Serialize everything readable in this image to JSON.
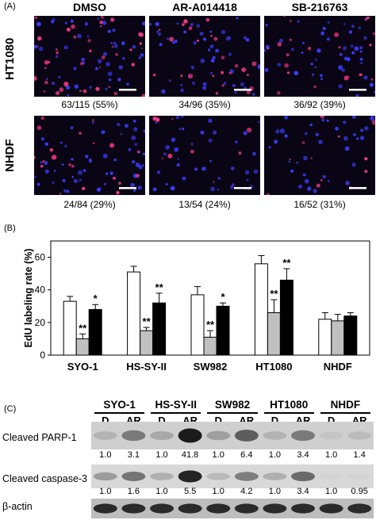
{
  "panel_a": {
    "label": "(A)",
    "columns": [
      "DMSO",
      "AR-A014418",
      "SB-216763"
    ],
    "rows": [
      "HT1080",
      "NHDF"
    ],
    "captions": [
      [
        "63/115 (55%)",
        "34/96 (35%)",
        "36/92 (39%)"
      ],
      [
        "24/84 (29%)",
        "13/54 (24%)",
        "16/52 (31%)"
      ]
    ]
  },
  "panel_b": {
    "label": "(B)",
    "significance": {
      "double": "**",
      "single": "*"
    }
  },
  "chart_data": {
    "type": "bar",
    "ylabel": "EdU labeling rate (%)",
    "ylim": [
      0,
      70
    ],
    "yticks": [
      "0",
      "20",
      "40",
      "60"
    ],
    "categories": [
      "SYO-1",
      "HS-SY-II",
      "SW982",
      "HT1080",
      "NHDF"
    ],
    "colors": [
      "#ffffff",
      "#c0c0c0",
      "#000000"
    ],
    "series": [
      {
        "values": [
          33,
          51,
          37,
          56,
          22
        ],
        "errors": [
          3,
          3.5,
          5,
          5,
          4
        ]
      },
      {
        "values": [
          10,
          15,
          11,
          26,
          21
        ],
        "errors": [
          3,
          2,
          4,
          8,
          4
        ]
      },
      {
        "values": [
          28,
          32,
          30,
          46,
          24
        ],
        "errors": [
          3,
          6,
          2,
          7,
          2
        ]
      }
    ],
    "annotations": [
      [
        null,
        "**",
        "*"
      ],
      [
        null,
        "**",
        "**"
      ],
      [
        null,
        "**",
        "*"
      ],
      [
        null,
        "**",
        "**"
      ],
      [
        null,
        null,
        null
      ]
    ]
  },
  "panel_c": {
    "label": "(C)",
    "cell_lines": [
      "SYO-1",
      "HS-SY-II",
      "SW982",
      "HT1080",
      "NHDF"
    ],
    "lane_labels": [
      "D",
      "AR"
    ],
    "blots": [
      {
        "name": "Cleaved PARP-1",
        "values": [
          "1.0",
          "3.1",
          "1.0",
          "41.8",
          "1.0",
          "6.4",
          "1.0",
          "3.4",
          "1.0",
          "1.4"
        ]
      },
      {
        "name": "Cleaved caspase-3",
        "values": [
          "1.0",
          "1.6",
          "1.0",
          "5.5",
          "1.0",
          "4.2",
          "1.0",
          "3.4",
          "1.0",
          "0.95"
        ]
      },
      {
        "name": "β-actin",
        "values": []
      }
    ]
  }
}
